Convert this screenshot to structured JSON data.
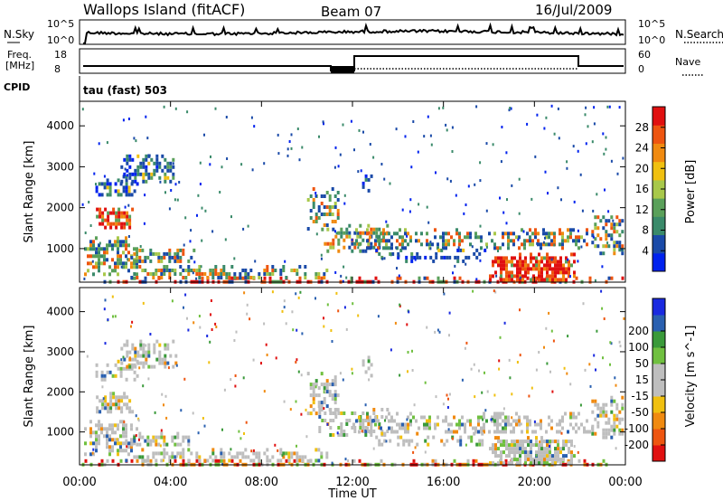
{
  "header": {
    "title": "Wallops Island (fitACF)",
    "beam": "Beam 07",
    "date": "16/Jul/2009"
  },
  "sky_panel": {
    "left_label": "N.Sky",
    "right_label": "N.Search",
    "left_ticks": [
      "10^5",
      "10^0"
    ],
    "right_ticks": [
      "10^5",
      "10^0"
    ]
  },
  "freq_panel": {
    "left_label_1": "Freq.",
    "left_label_2": "[MHz]",
    "right_label": "Nave",
    "left_ticks": [
      "18",
      "8"
    ],
    "right_ticks": [
      "60",
      "0"
    ]
  },
  "cpid": {
    "label": "CPID",
    "value": "tau (fast) 503"
  },
  "colors": {
    "power_scale": [
      "#0022ee",
      "#1a4aa8",
      "#3a8a6a",
      "#5aa05a",
      "#a8c84a",
      "#f0c010",
      "#f08a10",
      "#ee5510",
      "#e01010"
    ],
    "velocity_scale": [
      "#e01010",
      "#ee5510",
      "#f08a10",
      "#f0c010",
      "#bebebe",
      "#bebebe",
      "#70c040",
      "#3a9a3a",
      "#2a60b0",
      "#1a2ae0"
    ]
  },
  "chart_data": [
    {
      "type": "heatmap",
      "name": "power",
      "ylabel": "Slant Range [km]",
      "x_ticks": [
        "00:00",
        "04:00",
        "08:00",
        "12:00",
        "16:00",
        "20:00",
        "00:00"
      ],
      "y_ticks": [
        "1000",
        "2000",
        "3000",
        "4000"
      ],
      "xlim": [
        0,
        24
      ],
      "ylim": [
        180,
        4600
      ],
      "colorbar": {
        "label": "Power [dB]",
        "ticks": [
          "4",
          "8",
          "12",
          "16",
          "20",
          "24",
          "28"
        ]
      }
    },
    {
      "type": "heatmap",
      "name": "velocity",
      "ylabel": "Slant Range [km]",
      "xlabel": "Time UT",
      "x_ticks": [
        "00:00",
        "04:00",
        "08:00",
        "12:00",
        "16:00",
        "20:00",
        "00:00"
      ],
      "y_ticks": [
        "1000",
        "2000",
        "3000",
        "4000"
      ],
      "xlim": [
        0,
        24
      ],
      "ylim": [
        180,
        4600
      ],
      "colorbar": {
        "label": "Velocity [m s^-1]",
        "ticks": [
          "200",
          "100",
          "50",
          "15",
          "-15",
          "-50",
          "-100",
          "-200"
        ]
      }
    }
  ]
}
